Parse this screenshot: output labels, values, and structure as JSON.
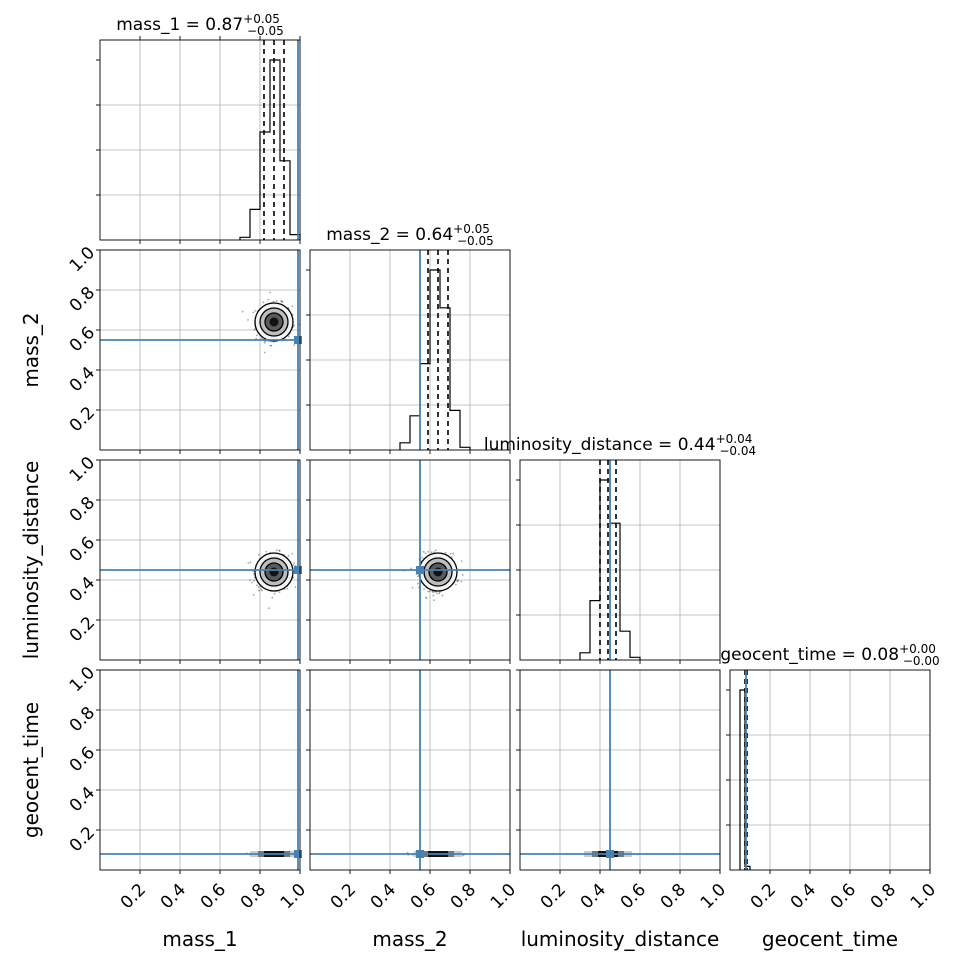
{
  "chart_data": {
    "type": "corner",
    "parameters": [
      "mass_1",
      "mass_2",
      "luminosity_distance",
      "geocent_time"
    ],
    "truths": {
      "mass_1": 0.99,
      "mass_2": 0.55,
      "luminosity_distance": 0.45,
      "geocent_time": 0.08
    },
    "titles": [
      {
        "param": "mass_1",
        "prefix": "mass_1 = 0.87",
        "plus": "+0.05",
        "minus": "−0.05"
      },
      {
        "param": "mass_2",
        "prefix": "mass_2 = 0.64",
        "plus": "+0.05",
        "minus": "−0.05"
      },
      {
        "param": "luminosity_distance",
        "prefix": "luminosity_distance = 0.44",
        "plus": "+0.04",
        "minus": "−0.04"
      },
      {
        "param": "geocent_time",
        "prefix": "geocent_time = 0.08",
        "plus": "+0.00",
        "minus": "−0.00"
      }
    ],
    "quantiles": {
      "mass_1": [
        0.82,
        0.87,
        0.92
      ],
      "mass_2": [
        0.59,
        0.64,
        0.69
      ],
      "luminosity_distance": [
        0.4,
        0.44,
        0.48
      ],
      "geocent_time": [
        0.075,
        0.08,
        0.085
      ]
    },
    "hist_1d": {
      "mass_1": {
        "edges": [
          0.7,
          0.75,
          0.8,
          0.85,
          0.9,
          0.95,
          1.0
        ],
        "heights": [
          0.015,
          0.17,
          0.6,
          1.0,
          0.44,
          0.03
        ]
      },
      "mass_2": {
        "edges": [
          0.45,
          0.5,
          0.55,
          0.6,
          0.65,
          0.7,
          0.75,
          0.8
        ],
        "heights": [
          0.04,
          0.19,
          0.48,
          1.0,
          0.79,
          0.22,
          0.015
        ]
      },
      "luminosity_distance": {
        "edges": [
          0.3,
          0.35,
          0.4,
          0.45,
          0.5,
          0.55,
          0.6
        ],
        "heights": [
          0.04,
          0.33,
          1.0,
          0.76,
          0.16,
          0.015
        ]
      },
      "geocent_time": {
        "edges": [
          0.05,
          0.075,
          0.1
        ],
        "heights": [
          1.0,
          0.02
        ]
      }
    },
    "centers_2d": {
      "mass_1": 0.87,
      "mass_2": 0.64,
      "luminosity_distance": 0.44,
      "geocent_time": 0.08
    },
    "axis_range": [
      0,
      1
    ],
    "ticks": [
      0.2,
      0.4,
      0.6,
      0.8,
      1.0
    ],
    "tick_labels": [
      "0.2",
      "0.4",
      "0.6",
      "0.8",
      "1.0"
    ],
    "axis_labels": [
      "mass_1",
      "mass_2",
      "luminosity_distance",
      "geocent_time"
    ],
    "grid": true,
    "truth_color": "#4682b4",
    "line_color": "#000000"
  }
}
